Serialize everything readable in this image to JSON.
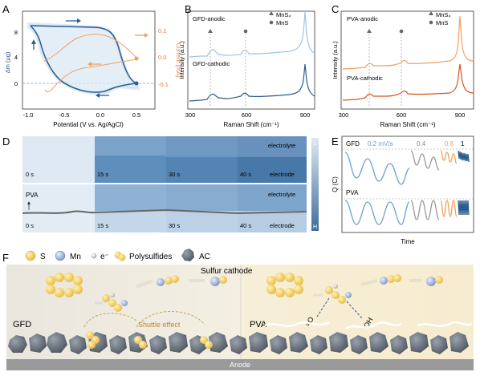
{
  "panels": {
    "A": {
      "letter": "A",
      "ylabel_left": "Δm (μg)",
      "ylabel_right": "Current (mA)",
      "xlabel": "Potential (V vs. Ag/AgCl)",
      "left_ticks": [
        "8",
        "4",
        "0"
      ],
      "right_ticks": [
        "0.1",
        "0.0",
        "-0.1"
      ],
      "x_ticks": [
        "-1.0",
        "-0.5",
        "0.0",
        "0.5"
      ]
    },
    "B": {
      "letter": "B",
      "label_top": "GFD-anodic",
      "label_bottom": "GFD-cathodic",
      "legend": [
        "MnS₄",
        "MnS"
      ],
      "ylabel": "Intensity (a.u.)",
      "xlabel": "Raman Shift (cm⁻¹)",
      "x_ticks": [
        "300",
        "600",
        "900"
      ]
    },
    "C": {
      "letter": "C",
      "label_top": "PVA-anodic",
      "label_bottom": "PVA-cathodic",
      "legend": [
        "MnS₄",
        "MnS"
      ],
      "ylabel": "Intensity (a.u.)",
      "xlabel": "Raman Shift (cm⁻¹)",
      "x_ticks": [
        "300",
        "600",
        "900"
      ]
    },
    "D": {
      "letter": "D",
      "row1": {
        "times": [
          "0 s",
          "15 s",
          "30 s",
          "40 s"
        ],
        "top_label": "electrolyte",
        "bottom_label": "electrode"
      },
      "row2": {
        "tag": "PVA",
        "times": [
          "0 s",
          "15 s",
          "30 s",
          "40 s"
        ],
        "top_label": "electrolyte",
        "bottom_label": "electrode"
      },
      "scale_low": "L",
      "scale_high": "H"
    },
    "E": {
      "letter": "E",
      "gfd": "GFD",
      "pva": "PVA",
      "rates": [
        "0.2 mV/s",
        "0.4",
        "0.8",
        "1"
      ],
      "ylabel": "Q (C)",
      "xlabel": "Time"
    },
    "F": {
      "letter": "F",
      "legend": {
        "s": "S",
        "mn": "Mn",
        "e": "e⁻",
        "poly": "Polysulfides",
        "ac": "AC"
      },
      "sulfur_cathode": "Sulfur cathode",
      "gfd": "GFD",
      "shuttle": "Shuttle effect",
      "pva": "PVA",
      "eq_o": "=O",
      "oh": "OH",
      "anode": "Anode"
    }
  },
  "colors": {
    "blue_dark": "#2a5d8f",
    "blue_light": "#9ec3e6",
    "orange": "#f2a15b",
    "orange_dark": "#d9531e",
    "gray": "#8a8a8a"
  }
}
